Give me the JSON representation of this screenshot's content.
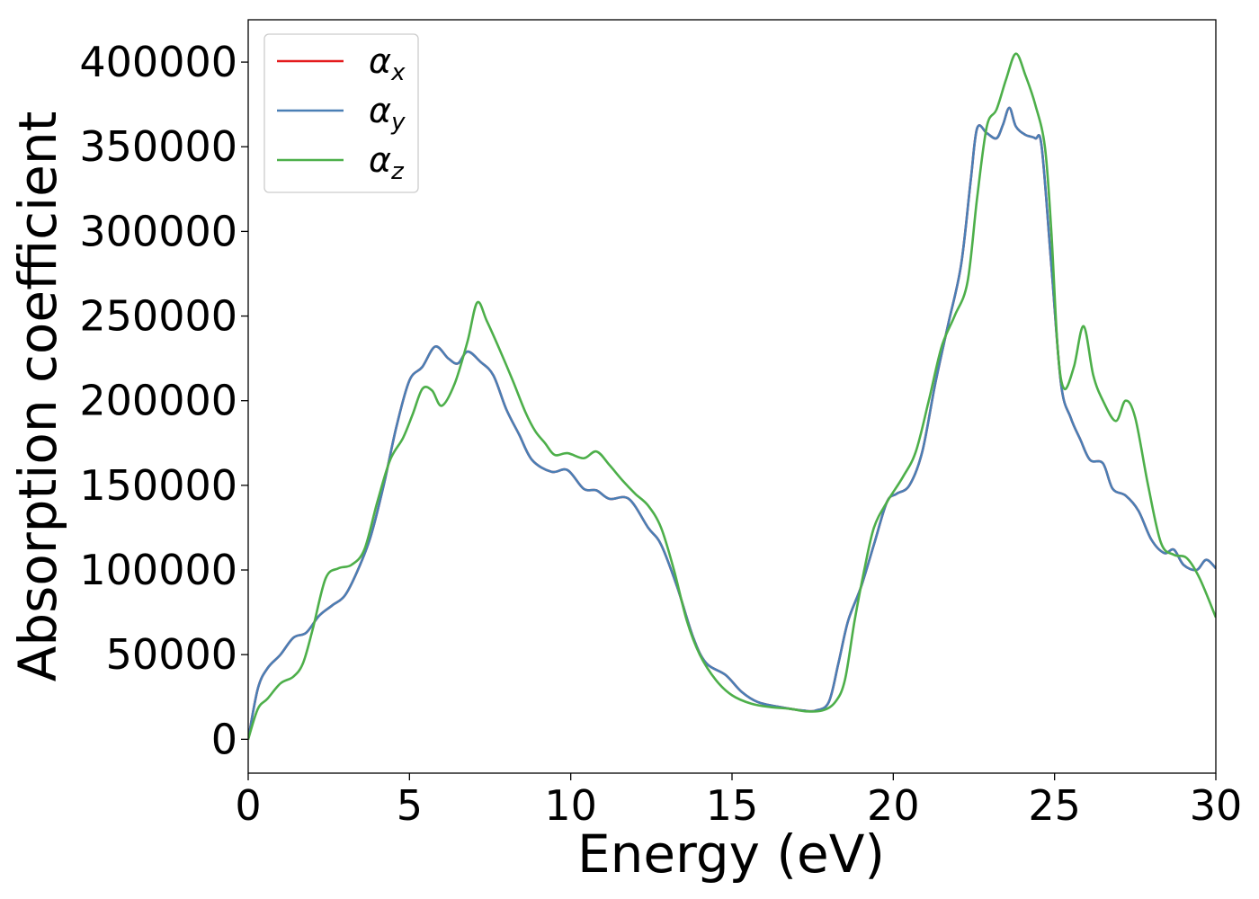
{
  "chart_data": {
    "type": "line",
    "title": "",
    "xlabel": "Energy (eV)",
    "ylabel": "Absorption coefficient",
    "xlim": [
      0,
      30
    ],
    "ylim": [
      -20000,
      425000
    ],
    "xticks": [
      0,
      5,
      10,
      15,
      20,
      25,
      30
    ],
    "yticks": [
      0,
      50000,
      100000,
      150000,
      200000,
      250000,
      300000,
      350000,
      400000
    ],
    "grid": false,
    "legend_position": "top-left",
    "series": [
      {
        "name": "α",
        "subscript": "x",
        "color": "#e41a1c",
        "points": [
          [
            0,
            0
          ],
          [
            0.3,
            30000
          ],
          [
            0.6,
            42000
          ],
          [
            1,
            50000
          ],
          [
            1.4,
            60000
          ],
          [
            1.8,
            63000
          ],
          [
            2.2,
            73000
          ],
          [
            2.6,
            79000
          ],
          [
            3.0,
            85000
          ],
          [
            3.4,
            100000
          ],
          [
            3.8,
            120000
          ],
          [
            4.2,
            150000
          ],
          [
            4.6,
            185000
          ],
          [
            5.0,
            212000
          ],
          [
            5.4,
            220000
          ],
          [
            5.8,
            232000
          ],
          [
            6.2,
            225000
          ],
          [
            6.5,
            222000
          ],
          [
            6.8,
            229000
          ],
          [
            7.2,
            223000
          ],
          [
            7.6,
            215000
          ],
          [
            8.0,
            195000
          ],
          [
            8.4,
            180000
          ],
          [
            8.8,
            165000
          ],
          [
            9.4,
            158000
          ],
          [
            9.9,
            159000
          ],
          [
            10.4,
            148000
          ],
          [
            10.8,
            147000
          ],
          [
            11.2,
            142000
          ],
          [
            11.8,
            142000
          ],
          [
            12.4,
            125000
          ],
          [
            12.8,
            115000
          ],
          [
            13.3,
            90000
          ],
          [
            13.8,
            60000
          ],
          [
            14.2,
            45000
          ],
          [
            14.8,
            38000
          ],
          [
            15.3,
            28000
          ],
          [
            15.8,
            22000
          ],
          [
            16.5,
            19000
          ],
          [
            17.2,
            17000
          ],
          [
            17.6,
            17000
          ],
          [
            18.0,
            22000
          ],
          [
            18.3,
            45000
          ],
          [
            18.6,
            70000
          ],
          [
            19.0,
            90000
          ],
          [
            19.4,
            115000
          ],
          [
            19.8,
            140000
          ],
          [
            20.1,
            145000
          ],
          [
            20.5,
            150000
          ],
          [
            20.9,
            170000
          ],
          [
            21.3,
            210000
          ],
          [
            21.7,
            245000
          ],
          [
            22.1,
            280000
          ],
          [
            22.4,
            330000
          ],
          [
            22.6,
            361000
          ],
          [
            22.9,
            358000
          ],
          [
            23.2,
            355000
          ],
          [
            23.4,
            363000
          ],
          [
            23.6,
            373000
          ],
          [
            23.8,
            362000
          ],
          [
            24.1,
            357000
          ],
          [
            24.4,
            355000
          ],
          [
            24.6,
            350000
          ],
          [
            24.9,
            280000
          ],
          [
            25.2,
            210000
          ],
          [
            25.5,
            190000
          ],
          [
            25.8,
            177000
          ],
          [
            26.1,
            165000
          ],
          [
            26.5,
            163000
          ],
          [
            26.8,
            148000
          ],
          [
            27.2,
            144000
          ],
          [
            27.6,
            135000
          ],
          [
            28.0,
            118000
          ],
          [
            28.4,
            110000
          ],
          [
            28.7,
            112000
          ],
          [
            29.0,
            103000
          ],
          [
            29.4,
            100000
          ],
          [
            29.7,
            106000
          ],
          [
            30.0,
            101000
          ]
        ]
      },
      {
        "name": "α",
        "subscript": "y",
        "color": "#4a7fb5",
        "points": [
          [
            0,
            0
          ],
          [
            0.3,
            30000
          ],
          [
            0.6,
            42000
          ],
          [
            1,
            50000
          ],
          [
            1.4,
            60000
          ],
          [
            1.8,
            63000
          ],
          [
            2.2,
            73000
          ],
          [
            2.6,
            79000
          ],
          [
            3.0,
            85000
          ],
          [
            3.4,
            100000
          ],
          [
            3.8,
            120000
          ],
          [
            4.2,
            150000
          ],
          [
            4.6,
            185000
          ],
          [
            5.0,
            212000
          ],
          [
            5.4,
            220000
          ],
          [
            5.8,
            232000
          ],
          [
            6.2,
            225000
          ],
          [
            6.5,
            222000
          ],
          [
            6.8,
            229000
          ],
          [
            7.2,
            223000
          ],
          [
            7.6,
            215000
          ],
          [
            8.0,
            195000
          ],
          [
            8.4,
            180000
          ],
          [
            8.8,
            165000
          ],
          [
            9.4,
            158000
          ],
          [
            9.9,
            159000
          ],
          [
            10.4,
            148000
          ],
          [
            10.8,
            147000
          ],
          [
            11.2,
            142000
          ],
          [
            11.8,
            142000
          ],
          [
            12.4,
            125000
          ],
          [
            12.8,
            115000
          ],
          [
            13.3,
            90000
          ],
          [
            13.8,
            60000
          ],
          [
            14.2,
            45000
          ],
          [
            14.8,
            38000
          ],
          [
            15.3,
            28000
          ],
          [
            15.8,
            22000
          ],
          [
            16.5,
            19000
          ],
          [
            17.2,
            17000
          ],
          [
            17.6,
            17000
          ],
          [
            18.0,
            22000
          ],
          [
            18.3,
            45000
          ],
          [
            18.6,
            70000
          ],
          [
            19.0,
            90000
          ],
          [
            19.4,
            115000
          ],
          [
            19.8,
            140000
          ],
          [
            20.1,
            145000
          ],
          [
            20.5,
            150000
          ],
          [
            20.9,
            170000
          ],
          [
            21.3,
            210000
          ],
          [
            21.7,
            245000
          ],
          [
            22.1,
            280000
          ],
          [
            22.4,
            330000
          ],
          [
            22.6,
            361000
          ],
          [
            22.9,
            358000
          ],
          [
            23.2,
            355000
          ],
          [
            23.4,
            363000
          ],
          [
            23.6,
            373000
          ],
          [
            23.8,
            362000
          ],
          [
            24.1,
            357000
          ],
          [
            24.4,
            355000
          ],
          [
            24.6,
            350000
          ],
          [
            24.9,
            280000
          ],
          [
            25.2,
            210000
          ],
          [
            25.5,
            190000
          ],
          [
            25.8,
            177000
          ],
          [
            26.1,
            165000
          ],
          [
            26.5,
            163000
          ],
          [
            26.8,
            148000
          ],
          [
            27.2,
            144000
          ],
          [
            27.6,
            135000
          ],
          [
            28.0,
            118000
          ],
          [
            28.4,
            110000
          ],
          [
            28.7,
            112000
          ],
          [
            29.0,
            103000
          ],
          [
            29.4,
            100000
          ],
          [
            29.7,
            106000
          ],
          [
            30.0,
            101000
          ]
        ]
      },
      {
        "name": "α",
        "subscript": "z",
        "color": "#4daf4a",
        "points": [
          [
            0,
            0
          ],
          [
            0.3,
            18000
          ],
          [
            0.6,
            24000
          ],
          [
            1,
            33000
          ],
          [
            1.4,
            37000
          ],
          [
            1.7,
            45000
          ],
          [
            2.0,
            65000
          ],
          [
            2.4,
            95000
          ],
          [
            2.8,
            101000
          ],
          [
            3.2,
            103000
          ],
          [
            3.6,
            112000
          ],
          [
            4.0,
            140000
          ],
          [
            4.4,
            165000
          ],
          [
            4.8,
            178000
          ],
          [
            5.1,
            192000
          ],
          [
            5.4,
            207000
          ],
          [
            5.7,
            206000
          ],
          [
            6.0,
            197000
          ],
          [
            6.4,
            210000
          ],
          [
            6.8,
            235000
          ],
          [
            7.1,
            258000
          ],
          [
            7.4,
            247000
          ],
          [
            7.8,
            230000
          ],
          [
            8.2,
            212000
          ],
          [
            8.6,
            193000
          ],
          [
            8.9,
            182000
          ],
          [
            9.2,
            175000
          ],
          [
            9.5,
            168000
          ],
          [
            9.9,
            169000
          ],
          [
            10.4,
            166000
          ],
          [
            10.8,
            170000
          ],
          [
            11.2,
            162000
          ],
          [
            11.6,
            153000
          ],
          [
            12.0,
            145000
          ],
          [
            12.4,
            138000
          ],
          [
            12.8,
            125000
          ],
          [
            13.2,
            100000
          ],
          [
            13.6,
            70000
          ],
          [
            14.0,
            50000
          ],
          [
            14.5,
            35000
          ],
          [
            15.0,
            26000
          ],
          [
            15.6,
            21000
          ],
          [
            16.2,
            19000
          ],
          [
            16.8,
            18000
          ],
          [
            17.3,
            16500
          ],
          [
            17.8,
            17000
          ],
          [
            18.2,
            22000
          ],
          [
            18.5,
            35000
          ],
          [
            18.8,
            70000
          ],
          [
            19.1,
            100000
          ],
          [
            19.4,
            125000
          ],
          [
            19.8,
            140000
          ],
          [
            20.3,
            155000
          ],
          [
            20.7,
            170000
          ],
          [
            21.1,
            200000
          ],
          [
            21.5,
            232000
          ],
          [
            21.9,
            250000
          ],
          [
            22.3,
            270000
          ],
          [
            22.6,
            320000
          ],
          [
            22.9,
            362000
          ],
          [
            23.2,
            372000
          ],
          [
            23.5,
            390000
          ],
          [
            23.8,
            405000
          ],
          [
            24.1,
            392000
          ],
          [
            24.4,
            375000
          ],
          [
            24.7,
            350000
          ],
          [
            24.9,
            300000
          ],
          [
            25.1,
            230000
          ],
          [
            25.3,
            207000
          ],
          [
            25.6,
            220000
          ],
          [
            25.9,
            244000
          ],
          [
            26.2,
            215000
          ],
          [
            26.5,
            200000
          ],
          [
            26.9,
            188000
          ],
          [
            27.2,
            200000
          ],
          [
            27.5,
            190000
          ],
          [
            27.9,
            150000
          ],
          [
            28.3,
            116000
          ],
          [
            28.7,
            109000
          ],
          [
            29.1,
            107000
          ],
          [
            29.5,
            95000
          ],
          [
            30.0,
            72000
          ]
        ]
      }
    ]
  }
}
